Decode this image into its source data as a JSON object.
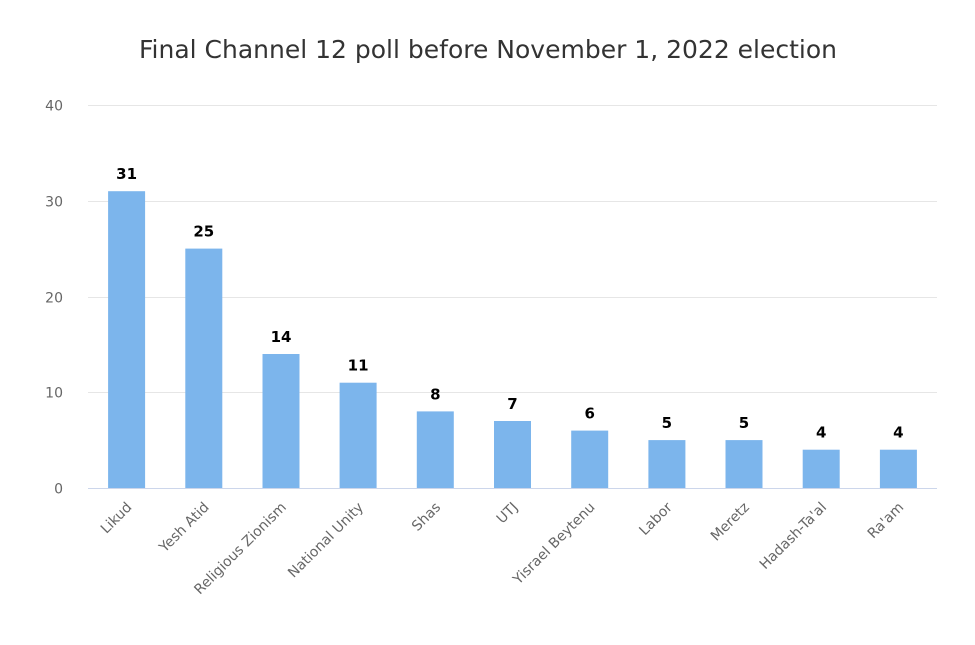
{
  "chart_data": {
    "type": "bar",
    "title": "Final Channel 12 poll before November 1, 2022 election",
    "xlabel": "",
    "ylabel": "",
    "ylim": [
      0,
      40
    ],
    "yticks": [
      0,
      10,
      20,
      30,
      40
    ],
    "grid": true,
    "legend": "none",
    "bar_color": "#7cb5ec",
    "categories": [
      "Likud",
      "Yesh Atid",
      "Religious Zionism",
      "National Unity",
      "Shas",
      "UTJ",
      "Yisrael Beytenu",
      "Labor",
      "Meretz",
      "Hadash-Ta'al",
      "Ra'am"
    ],
    "values": [
      31,
      25,
      14,
      11,
      8,
      7,
      6,
      5,
      5,
      4,
      4
    ]
  }
}
